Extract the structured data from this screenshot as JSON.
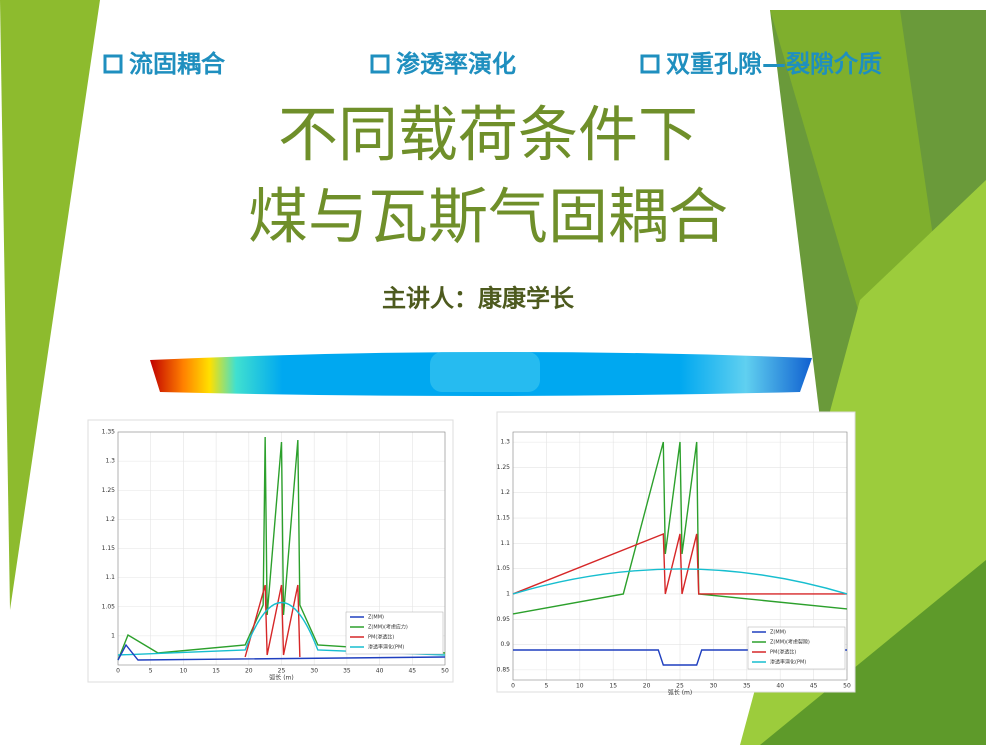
{
  "header_tags": [
    "流固耦合",
    "渗透率演化",
    "双重孔隙—裂隙介质"
  ],
  "title_lines": [
    "不同载荷条件下",
    "煤与瓦斯气固耦合"
  ],
  "presenter": "主讲人：康康学长",
  "figures": [
    {
      "x_label": "弧长 (m)",
      "xlim": [
        0,
        50
      ],
      "xticks": [
        0,
        5,
        10,
        15,
        20,
        25,
        30,
        35,
        40,
        45,
        50
      ],
      "ylim": [
        0.95,
        1.35
      ],
      "yticks": [
        1,
        1.05,
        1.1,
        1.15,
        1.2,
        1.25,
        1.3,
        1.35
      ],
      "legend": [
        "Z(MM)",
        "Z(MM)(考虑应力)",
        "PM(渗透比)",
        "渗透率演化(PM)"
      ]
    },
    {
      "x_label": "弧长 (m)",
      "xlim": [
        0,
        50
      ],
      "xticks": [
        0,
        5,
        10,
        15,
        20,
        25,
        30,
        35,
        40,
        45,
        50
      ],
      "ylim": [
        0.83,
        1.32
      ],
      "yticks": [
        0.85,
        0.9,
        0.95,
        1,
        1.05,
        1.1,
        1.15,
        1.2,
        1.25,
        1.3
      ],
      "legend": [
        "Z(MM)",
        "Z(MM)(考虑裂隙)",
        "PM(渗透比)",
        "渗透率演化(PM)"
      ]
    }
  ]
}
